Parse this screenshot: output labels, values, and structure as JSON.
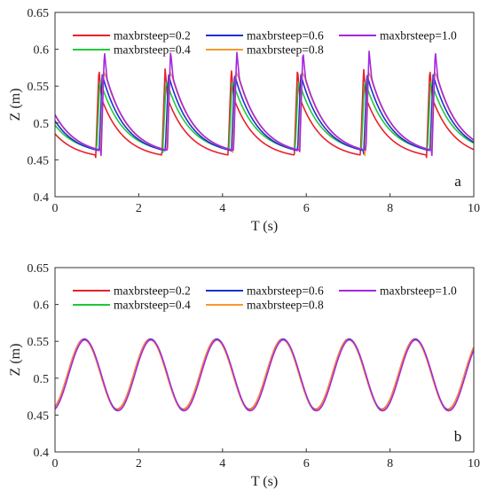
{
  "chart_data": [
    {
      "id": "a",
      "type": "line",
      "panel_label": "a",
      "xlabel": "T (s)",
      "ylabel": "Z (m)",
      "xlim": [
        0,
        10
      ],
      "ylim": [
        0.4,
        0.65
      ],
      "xticks": [
        0,
        2,
        4,
        6,
        8,
        10
      ],
      "yticks": [
        0.4,
        0.45,
        0.5,
        0.55,
        0.6,
        0.65
      ],
      "ytick_labels": [
        "0.4",
        "0.45",
        "0.5",
        "0.55",
        "0.6",
        "0.65"
      ],
      "legend_position": "top",
      "wave": "steep",
      "period": 1.58,
      "series": [
        {
          "name": "maxbrsteep=0.2",
          "color": "#e8212a",
          "phase": 0.97,
          "peak": 0.574,
          "trough": 0.451,
          "secondary": 0.533
        },
        {
          "name": "maxbrsteep=0.4",
          "color": "#22c83a",
          "phase": 0.99,
          "peak": 0.555,
          "trough": 0.458,
          "secondary": 0.548
        },
        {
          "name": "maxbrsteep=0.6",
          "color": "#1c2fd6",
          "phase": 1.05,
          "peak": 0.566,
          "trough": 0.456,
          "secondary": 0.553
        },
        {
          "name": "maxbrsteep=0.8",
          "color": "#f59a2d",
          "phase": 1.08,
          "peak": 0.57,
          "trough": 0.456,
          "secondary": 0.562
        },
        {
          "name": "maxbrsteep=1.0",
          "color": "#a528e0",
          "phase": 1.1,
          "peak": 0.598,
          "trough": 0.456,
          "secondary": 0.56
        }
      ]
    },
    {
      "id": "b",
      "type": "line",
      "panel_label": "b",
      "xlabel": "T (s)",
      "ylabel": "Z (m)",
      "xlim": [
        0,
        10
      ],
      "ylim": [
        0.4,
        0.65
      ],
      "xticks": [
        0,
        2,
        4,
        6,
        8,
        10
      ],
      "yticks": [
        0.4,
        0.45,
        0.5,
        0.55,
        0.6,
        0.65
      ],
      "ytick_labels": [
        "0.4",
        "0.45",
        "0.5",
        "0.55",
        "0.6",
        "0.65"
      ],
      "legend_position": "top",
      "wave": "sine",
      "period": 1.58,
      "series": [
        {
          "name": "maxbrsteep=0.2",
          "color": "#e8212a",
          "phase": 0.0,
          "peak": 0.553,
          "trough": 0.458
        },
        {
          "name": "maxbrsteep=0.4",
          "color": "#22c83a",
          "phase": 0.01,
          "peak": 0.552,
          "trough": 0.457
        },
        {
          "name": "maxbrsteep=0.6",
          "color": "#1c2fd6",
          "phase": 0.01,
          "peak": 0.553,
          "trough": 0.456
        },
        {
          "name": "maxbrsteep=0.8",
          "color": "#f59a2d",
          "phase": 0.0,
          "peak": 0.552,
          "trough": 0.457
        },
        {
          "name": "maxbrsteep=1.0",
          "color": "#a528e0",
          "phase": 0.02,
          "peak": 0.552,
          "trough": 0.456
        }
      ]
    }
  ]
}
